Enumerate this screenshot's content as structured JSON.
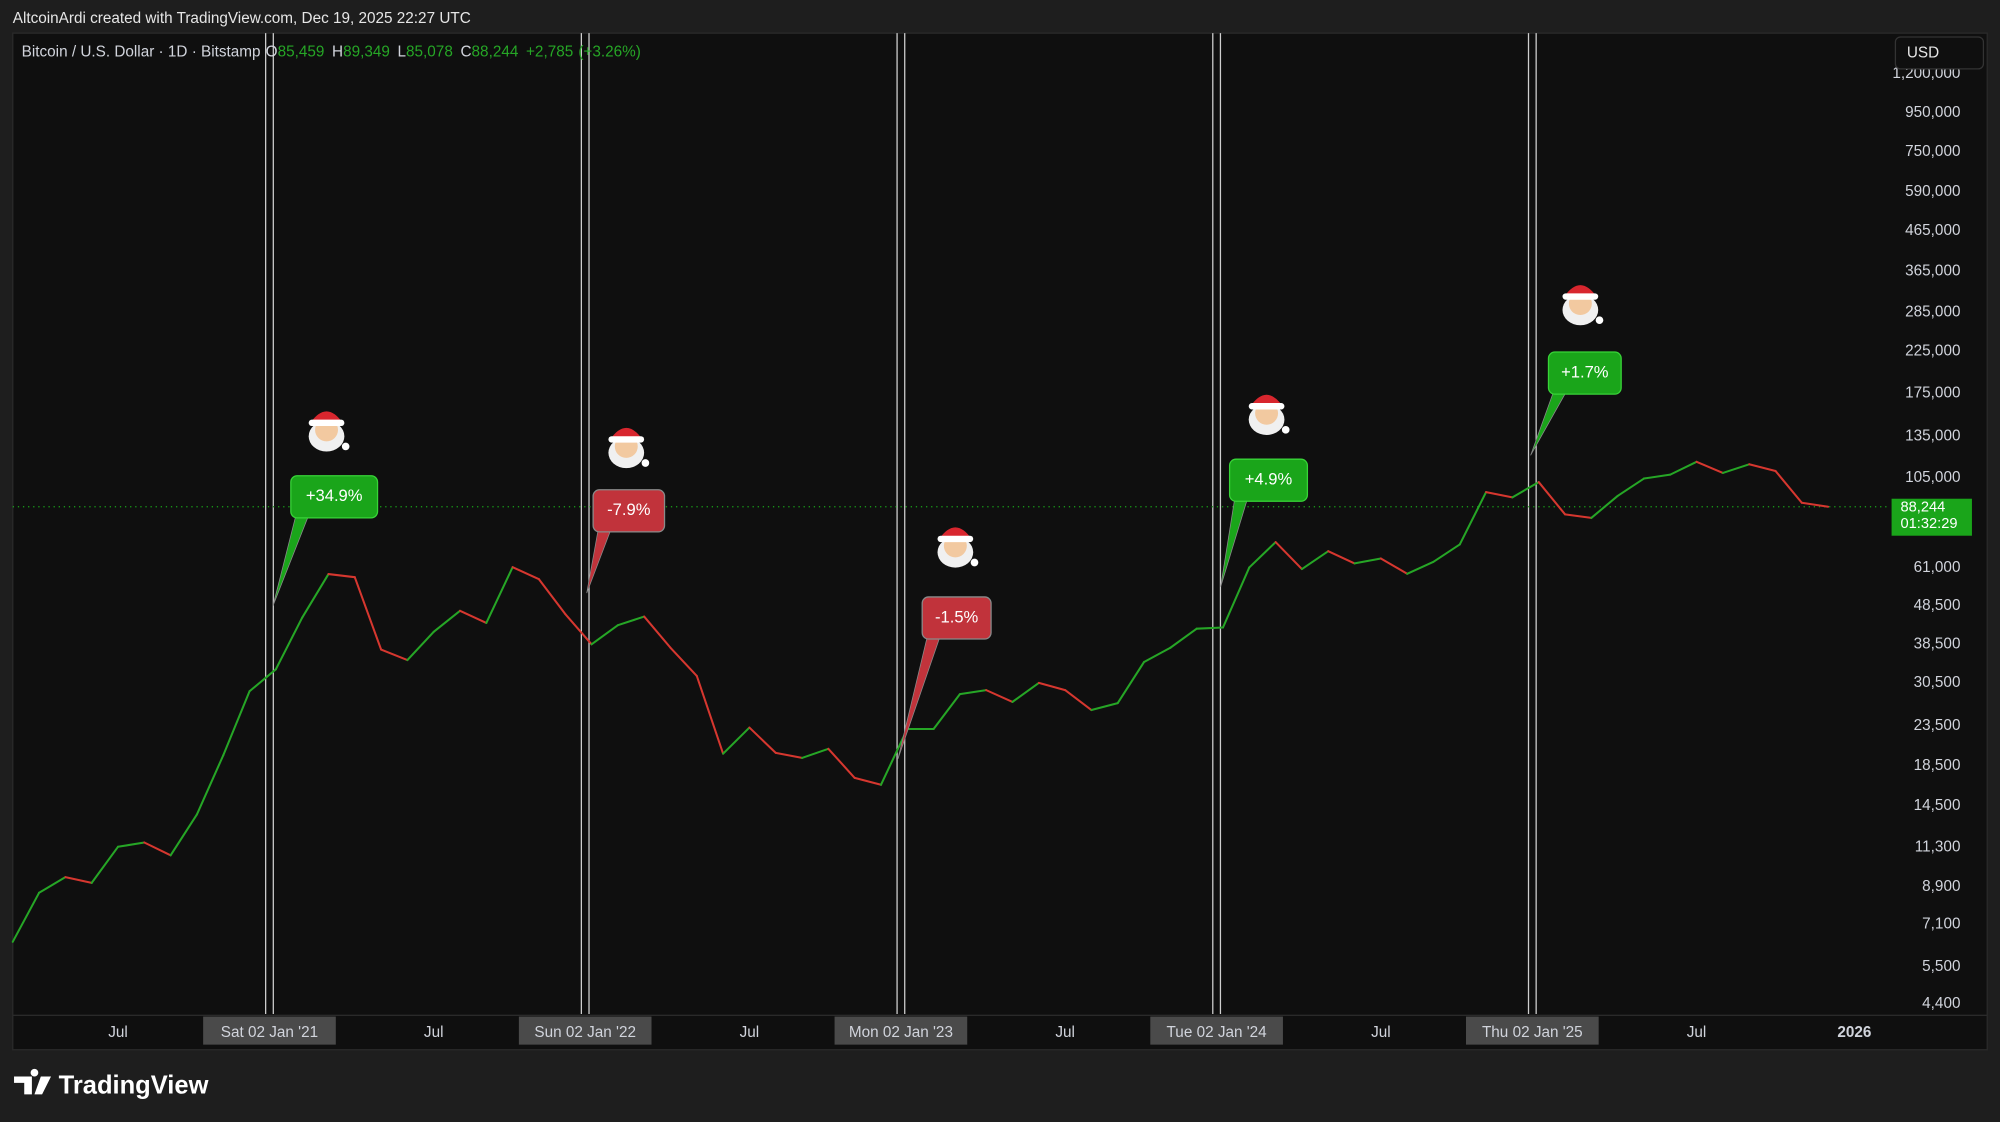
{
  "header": "AltcoinArdi created with TradingView.com, Dec 19, 2025 22:27 UTC",
  "branding": "TradingView",
  "currency_button": "USD",
  "chart_data": {
    "type": "line",
    "symbol": "Bitcoin / U.S. Dollar · 1D · Bitstamp",
    "ohlc": [
      {
        "key": "O",
        "value": "85,459"
      },
      {
        "key": "H",
        "value": "89,349"
      },
      {
        "key": "L",
        "value": "85,078"
      },
      {
        "key": "C",
        "value": "88,244"
      }
    ],
    "change": "+2,785",
    "change_pct": "(+3.26%)",
    "log_scale": true,
    "grid": false,
    "up_color": "#26a626",
    "down_color": "#d6372f",
    "x": [
      "2020-03",
      "2020-04",
      "2020-05",
      "2020-06",
      "2020-07",
      "2020-08",
      "2020-09",
      "2020-10",
      "2020-11",
      "2020-12",
      "2021-01",
      "2021-02",
      "2021-03",
      "2021-04",
      "2021-05",
      "2021-06",
      "2021-07",
      "2021-08",
      "2021-09",
      "2021-10",
      "2021-11",
      "2021-12",
      "2022-01",
      "2022-02",
      "2022-03",
      "2022-04",
      "2022-05",
      "2022-06",
      "2022-07",
      "2022-08",
      "2022-09",
      "2022-10",
      "2022-11",
      "2022-12",
      "2023-01",
      "2023-02",
      "2023-03",
      "2023-04",
      "2023-05",
      "2023-06",
      "2023-07",
      "2023-08",
      "2023-09",
      "2023-10",
      "2023-11",
      "2023-12",
      "2024-01",
      "2024-02",
      "2024-03",
      "2024-04",
      "2024-05",
      "2024-06",
      "2024-07",
      "2024-08",
      "2024-09",
      "2024-10",
      "2024-11",
      "2024-12",
      "2025-01",
      "2025-02",
      "2025-03",
      "2025-04",
      "2025-05",
      "2025-06",
      "2025-07",
      "2025-08",
      "2025-09",
      "2025-10",
      "2025-11",
      "2025-12"
    ],
    "values": [
      6400,
      8600,
      9450,
      9130,
      11350,
      11650,
      10780,
      13800,
      19700,
      29000,
      33100,
      45200,
      58800,
      57700,
      37300,
      35000,
      41500,
      47100,
      43800,
      61300,
      57000,
      46200,
      38500,
      43200,
      45500,
      37700,
      31800,
      19900,
      23300,
      20000,
      19400,
      20500,
      17200,
      16500,
      23100,
      23100,
      28500,
      29200,
      27200,
      30500,
      29200,
      25900,
      27000,
      34600,
      37700,
      42300,
      42600,
      61200,
      71300,
      60600,
      67500,
      62700,
      64600,
      58900,
      63300,
      70300,
      96400,
      93400,
      102400,
      84300,
      82500,
      94200,
      104600,
      107100,
      115700,
      108200,
      114000,
      109500,
      90400,
      88244
    ],
    "xlim": [
      "2020-03",
      "2026-06"
    ],
    "xticks": [
      {
        "value": "2020-07",
        "label": "Jul"
      },
      {
        "value": "2021-01",
        "label": "Sat 02 Jan '21"
      },
      {
        "value": "2021-07",
        "label": "Jul"
      },
      {
        "value": "2022-01",
        "label": "Sun 02 Jan '22"
      },
      {
        "value": "2022-07",
        "label": "Jul"
      },
      {
        "value": "2023-01",
        "label": "Mon 02 Jan '23"
      },
      {
        "value": "2023-07",
        "label": "Jul"
      },
      {
        "value": "2024-01",
        "label": "Tue 02 Jan '24"
      },
      {
        "value": "2024-07",
        "label": "Jul"
      },
      {
        "value": "2025-01",
        "label": "Thu 02 Jan '25"
      },
      {
        "value": "2025-07",
        "label": "Jul"
      },
      {
        "value": "2026-01",
        "label": "2026"
      }
    ],
    "ylim": [
      4140,
      1535000
    ],
    "yticks": [
      {
        "value": 4400,
        "label": "4,400"
      },
      {
        "value": 5500,
        "label": "5,500"
      },
      {
        "value": 7100,
        "label": "7,100"
      },
      {
        "value": 8900,
        "label": "8,900"
      },
      {
        "value": 11300,
        "label": "11,300"
      },
      {
        "value": 14500,
        "label": "14,500"
      },
      {
        "value": 18500,
        "label": "18,500"
      },
      {
        "value": 23500,
        "label": "23,500"
      },
      {
        "value": 30500,
        "label": "30,500"
      },
      {
        "value": 38500,
        "label": "38,500"
      },
      {
        "value": 48500,
        "label": "48,500"
      },
      {
        "value": 61000,
        "label": "61,000"
      },
      {
        "value": 105000,
        "label": "105,000"
      },
      {
        "value": 135000,
        "label": "135,000"
      },
      {
        "value": 175000,
        "label": "175,000"
      },
      {
        "value": 225000,
        "label": "225,000"
      },
      {
        "value": 285000,
        "label": "285,000"
      },
      {
        "value": 365000,
        "label": "365,000"
      },
      {
        "value": 465000,
        "label": "465,000"
      },
      {
        "value": 590000,
        "label": "590,000"
      },
      {
        "value": 750000,
        "label": "750,000"
      },
      {
        "value": 950000,
        "label": "950,000"
      },
      {
        "value": 1200000,
        "label": "1,200,000"
      }
    ],
    "last_price": {
      "value": 88244,
      "label": "88,244"
    },
    "countdown": "01:32:29",
    "last_price_color": "#1aa51a",
    "annotations": [
      {
        "label": "+34.9%",
        "color": "#1aa51a"
      },
      {
        "label": "-7.9%",
        "color": "#c1333b"
      },
      {
        "label": "-1.5%",
        "color": "#c1333b"
      },
      {
        "label": "+4.9%",
        "color": "#1aa51a"
      },
      {
        "label": "+1.7%",
        "color": "#1aa51a"
      }
    ]
  }
}
